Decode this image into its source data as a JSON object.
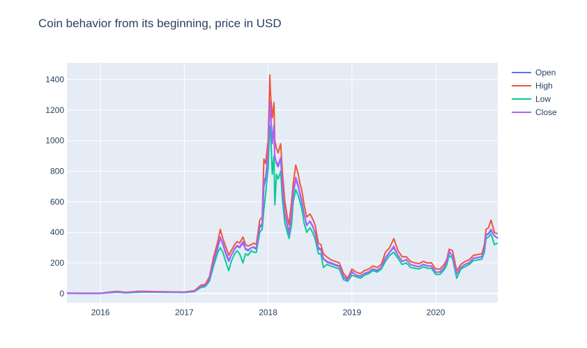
{
  "chart_data": {
    "type": "line",
    "title": "Coin behavior from its beginning, price in USD",
    "xlabel": "",
    "ylabel": "",
    "xlim": [
      2015.6,
      2020.74
    ],
    "ylim": [
      -60,
      1510
    ],
    "x_ticks": [
      2016,
      2017,
      2018,
      2019,
      2020
    ],
    "x_tick_labels": [
      "2016",
      "2017",
      "2018",
      "2019",
      "2020"
    ],
    "y_ticks": [
      0,
      200,
      400,
      600,
      800,
      1000,
      1200,
      1400
    ],
    "y_tick_labels": [
      "0",
      "200",
      "400",
      "600",
      "800",
      "1000",
      "1200",
      "1400"
    ],
    "grid": true,
    "legend_position": "top-right",
    "x": [
      2015.6,
      2015.75,
      2016.0,
      2016.15,
      2016.2,
      2016.3,
      2016.45,
      2016.5,
      2016.7,
      2017.0,
      2017.12,
      2017.2,
      2017.25,
      2017.3,
      2017.35,
      2017.4,
      2017.43,
      2017.46,
      2017.5,
      2017.53,
      2017.56,
      2017.6,
      2017.63,
      2017.66,
      2017.7,
      2017.73,
      2017.76,
      2017.8,
      2017.83,
      2017.86,
      2017.9,
      2017.93,
      2017.95,
      2017.97,
      2018.0,
      2018.02,
      2018.03,
      2018.05,
      2018.07,
      2018.08,
      2018.1,
      2018.12,
      2018.15,
      2018.17,
      2018.2,
      2018.23,
      2018.25,
      2018.28,
      2018.3,
      2018.33,
      2018.36,
      2018.38,
      2018.4,
      2018.43,
      2018.46,
      2018.5,
      2018.53,
      2018.56,
      2018.6,
      2018.63,
      2018.66,
      2018.7,
      2018.75,
      2018.8,
      2018.85,
      2018.9,
      2018.95,
      2019.0,
      2019.05,
      2019.1,
      2019.15,
      2019.2,
      2019.25,
      2019.3,
      2019.35,
      2019.4,
      2019.45,
      2019.5,
      2019.55,
      2019.6,
      2019.65,
      2019.7,
      2019.75,
      2019.8,
      2019.85,
      2019.9,
      2019.95,
      2020.0,
      2020.05,
      2020.1,
      2020.13,
      2020.16,
      2020.2,
      2020.25,
      2020.3,
      2020.35,
      2020.4,
      2020.45,
      2020.5,
      2020.55,
      2020.58,
      2020.6,
      2020.63,
      2020.66,
      2020.7,
      2020.74
    ],
    "series": [
      {
        "name": "Open",
        "color": "#636efa",
        "values": [
          2,
          1,
          1,
          8,
          10,
          6,
          10,
          12,
          10,
          8,
          15,
          45,
          50,
          90,
          200,
          300,
          360,
          330,
          260,
          220,
          250,
          290,
          310,
          300,
          330,
          290,
          280,
          300,
          300,
          290,
          430,
          450,
          700,
          750,
          900,
          1250,
          1180,
          1000,
          1100,
          900,
          850,
          830,
          880,
          700,
          530,
          450,
          400,
          500,
          650,
          750,
          700,
          650,
          600,
          520,
          450,
          470,
          440,
          400,
          300,
          290,
          230,
          210,
          200,
          190,
          180,
          110,
          90,
          140,
          120,
          115,
          130,
          140,
          160,
          150,
          170,
          230,
          270,
          300,
          250,
          210,
          220,
          190,
          180,
          175,
          190,
          180,
          180,
          140,
          140,
          170,
          200,
          270,
          250,
          130,
          170,
          190,
          200,
          230,
          235,
          240,
          290,
          380,
          390,
          410,
          380,
          360
        ]
      },
      {
        "name": "High",
        "color": "#ef553b",
        "values": [
          3,
          2,
          2,
          12,
          14,
          8,
          14,
          15,
          12,
          10,
          18,
          55,
          60,
          110,
          240,
          340,
          420,
          360,
          300,
          250,
          280,
          320,
          340,
          330,
          370,
          320,
          310,
          320,
          330,
          320,
          480,
          500,
          880,
          850,
          1000,
          1430,
          1300,
          1150,
          1250,
          1000,
          950,
          920,
          980,
          800,
          600,
          500,
          450,
          600,
          720,
          840,
          780,
          720,
          680,
          580,
          500,
          520,
          490,
          450,
          330,
          320,
          260,
          240,
          220,
          210,
          200,
          130,
          100,
          160,
          140,
          130,
          150,
          160,
          180,
          170,
          190,
          270,
          300,
          360,
          280,
          240,
          240,
          210,
          200,
          195,
          210,
          200,
          200,
          160,
          160,
          190,
          220,
          290,
          280,
          150,
          190,
          210,
          220,
          250,
          255,
          260,
          320,
          420,
          430,
          480,
          400,
          390
        ]
      },
      {
        "name": "Low",
        "color": "#00cc96",
        "values": [
          1,
          0.5,
          0.5,
          6,
          8,
          4,
          8,
          10,
          8,
          6,
          12,
          40,
          45,
          80,
          180,
          270,
          300,
          270,
          200,
          150,
          210,
          260,
          280,
          260,
          200,
          260,
          250,
          280,
          270,
          270,
          400,
          420,
          550,
          650,
          820,
          1100,
          1050,
          780,
          900,
          580,
          780,
          750,
          800,
          620,
          460,
          400,
          360,
          450,
          600,
          680,
          640,
          600,
          560,
          460,
          400,
          430,
          400,
          360,
          260,
          260,
          170,
          190,
          180,
          170,
          160,
          90,
          80,
          120,
          110,
          100,
          120,
          130,
          150,
          140,
          160,
          210,
          250,
          270,
          230,
          190,
          200,
          170,
          165,
          160,
          175,
          165,
          165,
          125,
          125,
          155,
          185,
          250,
          230,
          100,
          160,
          175,
          190,
          215,
          220,
          225,
          270,
          360,
          370,
          390,
          320,
          330
        ]
      },
      {
        "name": "Close",
        "color": "#ab63fa",
        "values": [
          2,
          1,
          1,
          9,
          11,
          6,
          11,
          12,
          10,
          8,
          15,
          47,
          52,
          95,
          210,
          310,
          370,
          320,
          250,
          210,
          250,
          295,
          315,
          305,
          340,
          295,
          285,
          300,
          305,
          295,
          440,
          460,
          740,
          760,
          920,
          1260,
          1170,
          980,
          1090,
          880,
          860,
          840,
          890,
          710,
          520,
          440,
          390,
          510,
          660,
          760,
          710,
          660,
          610,
          520,
          445,
          475,
          445,
          395,
          290,
          285,
          225,
          205,
          195,
          185,
          175,
          105,
          88,
          145,
          118,
          112,
          132,
          142,
          162,
          152,
          172,
          235,
          272,
          310,
          248,
          212,
          222,
          188,
          182,
          176,
          192,
          182,
          178,
          138,
          142,
          172,
          205,
          275,
          245,
          128,
          172,
          192,
          202,
          232,
          236,
          242,
          295,
          385,
          395,
          420,
          375,
          365
        ]
      }
    ]
  }
}
